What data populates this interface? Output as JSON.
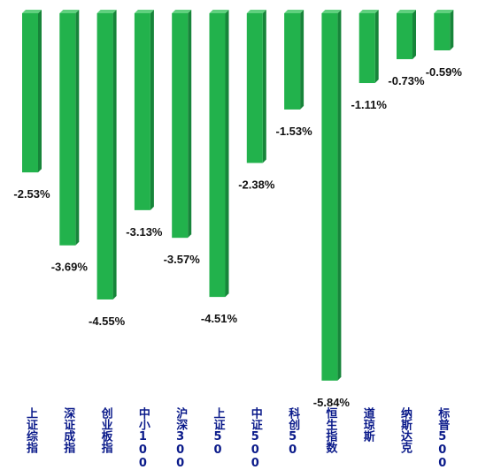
{
  "chart_data": {
    "type": "bar",
    "categories": [
      "上证综指",
      "深证成指",
      "创业板指",
      "中小100",
      "沪深300",
      "上证50",
      "中证500",
      "科创50",
      "恒生指数",
      "道琼斯",
      "纳斯达克",
      "标普500"
    ],
    "values": [
      -2.53,
      -3.69,
      -4.55,
      -3.13,
      -3.57,
      -4.51,
      -2.38,
      -1.53,
      -5.84,
      -1.11,
      -0.73,
      -0.59
    ],
    "value_labels": [
      "-2.53%",
      "-3.69%",
      "-4.55%",
      "-3.13%",
      "-3.57%",
      "-4.51%",
      "-2.38%",
      "-1.53%",
      "-5.84%",
      "-1.11%",
      "-0.73%",
      "-0.59%"
    ],
    "title": "",
    "xlabel": "",
    "ylabel": "",
    "ylim": [
      -6,
      0
    ],
    "grid": false,
    "legend": "none",
    "colors": {
      "bar_front": "#22b24c",
      "bar_side": "#17853a",
      "bar_top": "#5fd07e",
      "label_text": "#0a1a8a"
    }
  }
}
